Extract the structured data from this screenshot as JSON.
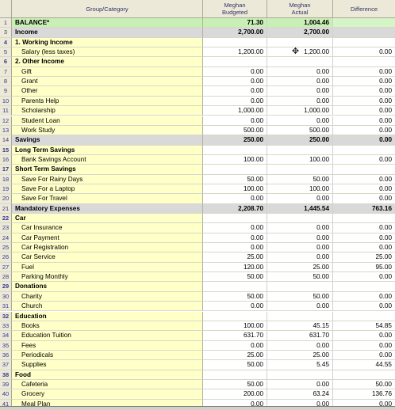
{
  "headers": {
    "group": "Group/Category",
    "budgeted": [
      "Meghan",
      "Budgeted"
    ],
    "actual": [
      "Meghan",
      "Actual"
    ],
    "difference": "Difference"
  },
  "rows": [
    {
      "n": "1",
      "name": "BALANCE*",
      "b": "71.30",
      "a": "1,004.46",
      "d": "",
      "t": "balance"
    },
    {
      "n": "3",
      "name": "Income",
      "b": "2,700.00",
      "a": "2,700.00",
      "d": "",
      "t": "total"
    },
    {
      "n": "4",
      "name": "1. Working Income",
      "b": "",
      "a": "",
      "d": "",
      "t": "cat"
    },
    {
      "n": "5",
      "name": "Salary (less taxes)",
      "b": "1,200.00",
      "a": "1,200.00",
      "d": "0.00",
      "t": "sub"
    },
    {
      "n": "6",
      "name": "2. Other Income",
      "b": "",
      "a": "",
      "d": "",
      "t": "cat"
    },
    {
      "n": "7",
      "name": "Gift",
      "b": "0.00",
      "a": "0.00",
      "d": "0.00",
      "t": "sub"
    },
    {
      "n": "8",
      "name": "Grant",
      "b": "0.00",
      "a": "0.00",
      "d": "0.00",
      "t": "sub"
    },
    {
      "n": "9",
      "name": "Other",
      "b": "0.00",
      "a": "0.00",
      "d": "0.00",
      "t": "sub"
    },
    {
      "n": "10",
      "name": "Parents Help",
      "b": "0.00",
      "a": "0.00",
      "d": "0.00",
      "t": "sub"
    },
    {
      "n": "11",
      "name": "Scholarship",
      "b": "1,000.00",
      "a": "1,000.00",
      "d": "0.00",
      "t": "sub"
    },
    {
      "n": "12",
      "name": "Student Loan",
      "b": "0.00",
      "a": "0.00",
      "d": "0.00",
      "t": "sub"
    },
    {
      "n": "13",
      "name": "Work Study",
      "b": "500.00",
      "a": "500.00",
      "d": "0.00",
      "t": "sub"
    },
    {
      "n": "14",
      "name": "Savings",
      "b": "250.00",
      "a": "250.00",
      "d": "0.00",
      "t": "total"
    },
    {
      "n": "15",
      "name": "Long Term Savings",
      "b": "",
      "a": "",
      "d": "",
      "t": "cat"
    },
    {
      "n": "16",
      "name": "Bank Savings Account",
      "b": "100.00",
      "a": "100.00",
      "d": "0.00",
      "t": "sub"
    },
    {
      "n": "17",
      "name": "Short Term Savings",
      "b": "",
      "a": "",
      "d": "",
      "t": "cat"
    },
    {
      "n": "18",
      "name": "Save For  Rainy Days",
      "b": "50.00",
      "a": "50.00",
      "d": "0.00",
      "t": "sub"
    },
    {
      "n": "19",
      "name": "Save For a Laptop",
      "b": "100.00",
      "a": "100.00",
      "d": "0.00",
      "t": "sub"
    },
    {
      "n": "20",
      "name": "Save For Travel",
      "b": "0.00",
      "a": "0.00",
      "d": "0.00",
      "t": "sub"
    },
    {
      "n": "21",
      "name": "Mandatory Expenses",
      "b": "2,208.70",
      "a": "1,445.54",
      "d": "763.16",
      "t": "total"
    },
    {
      "n": "22",
      "name": "Car",
      "b": "",
      "a": "",
      "d": "",
      "t": "cat"
    },
    {
      "n": "23",
      "name": "Car Insurance",
      "b": "0.00",
      "a": "0.00",
      "d": "0.00",
      "t": "sub"
    },
    {
      "n": "24",
      "name": "Car Payment",
      "b": "0.00",
      "a": "0.00",
      "d": "0.00",
      "t": "sub"
    },
    {
      "n": "25",
      "name": "Car Registration",
      "b": "0.00",
      "a": "0.00",
      "d": "0.00",
      "t": "sub"
    },
    {
      "n": "26",
      "name": "Car Service",
      "b": "25.00",
      "a": "0.00",
      "d": "25.00",
      "t": "sub"
    },
    {
      "n": "27",
      "name": "Fuel",
      "b": "120.00",
      "a": "25.00",
      "d": "95.00",
      "t": "sub"
    },
    {
      "n": "28",
      "name": "Parking Monthly",
      "b": "50.00",
      "a": "50.00",
      "d": "0.00",
      "t": "sub"
    },
    {
      "n": "29",
      "name": "Donations",
      "b": "",
      "a": "",
      "d": "",
      "t": "cat"
    },
    {
      "n": "30",
      "name": "Charity",
      "b": "50.00",
      "a": "50.00",
      "d": "0.00",
      "t": "sub"
    },
    {
      "n": "31",
      "name": "Church",
      "b": "0.00",
      "a": "0.00",
      "d": "0.00",
      "t": "sub"
    },
    {
      "n": "32",
      "name": "Education",
      "b": "",
      "a": "",
      "d": "",
      "t": "cat"
    },
    {
      "n": "33",
      "name": "Books",
      "b": "100.00",
      "a": "45.15",
      "d": "54.85",
      "t": "sub"
    },
    {
      "n": "34",
      "name": "Education Tuition",
      "b": "631.70",
      "a": "631.70",
      "d": "0.00",
      "t": "sub"
    },
    {
      "n": "35",
      "name": "Fees",
      "b": "0.00",
      "a": "0.00",
      "d": "0.00",
      "t": "sub"
    },
    {
      "n": "36",
      "name": "Periodicals",
      "b": "25.00",
      "a": "25.00",
      "d": "0.00",
      "t": "sub"
    },
    {
      "n": "37",
      "name": "Supplies",
      "b": "50.00",
      "a": "5.45",
      "d": "44.55",
      "t": "sub"
    },
    {
      "n": "38",
      "name": "Food",
      "b": "",
      "a": "",
      "d": "",
      "t": "cat"
    },
    {
      "n": "39",
      "name": "Cafeteria",
      "b": "50.00",
      "a": "0.00",
      "d": "50.00",
      "t": "sub"
    },
    {
      "n": "40",
      "name": "Grocery",
      "b": "200.00",
      "a": "63.24",
      "d": "136.76",
      "t": "sub"
    },
    {
      "n": "41",
      "name": "Meal Plan",
      "b": "0.00",
      "a": "0.00",
      "d": "0.00",
      "t": "sub"
    }
  ],
  "cursor_icon": "move-cursor-icon"
}
